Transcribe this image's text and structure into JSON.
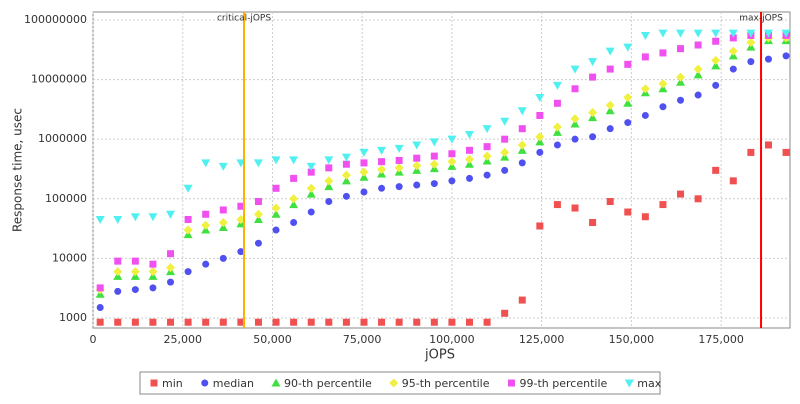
{
  "chart_data": {
    "type": "scatter",
    "xlabel": "jOPS",
    "ylabel": "Response time, usec",
    "xlim": [
      0,
      194200
    ],
    "ylim": [
      680,
      136000000
    ],
    "log_y": true,
    "grid": true,
    "xticks": [
      0,
      {
        "value": 25000,
        "label": "25,000"
      },
      {
        "value": 50000,
        "label": "50,000"
      },
      {
        "value": 75000,
        "label": "75,000"
      },
      {
        "value": 100000,
        "label": "100,000"
      },
      {
        "value": 125000,
        "label": "125,000"
      },
      {
        "value": 150000,
        "label": "150,000"
      },
      {
        "value": 175000,
        "label": "175,000"
      }
    ],
    "yticks": [
      1000,
      10000,
      100000,
      1000000,
      10000000,
      100000000
    ],
    "markers": [
      {
        "label": "critical-jOPS",
        "value": 42073,
        "color": "#ffb000"
      },
      {
        "label": "max-jOPS",
        "value": 186130,
        "color": "#ff0000"
      }
    ],
    "legend": "bottom",
    "x": [
      2000,
      6900,
      11800,
      16700,
      21600,
      26500,
      31400,
      36300,
      41200,
      46100,
      51000,
      55900,
      60800,
      65700,
      70600,
      75500,
      80400,
      85300,
      90200,
      95100,
      100000,
      104900,
      109800,
      114700,
      119600,
      124500,
      129400,
      134300,
      139200,
      144100,
      149000,
      153900,
      158800,
      163700,
      168600,
      173500,
      178400,
      183300,
      188200,
      193100
    ],
    "series": [
      {
        "name": "min",
        "color": "#f05050",
        "marker": "square",
        "values": [
          850,
          850,
          850,
          850,
          850,
          850,
          850,
          850,
          850,
          850,
          850,
          850,
          850,
          850,
          850,
          850,
          850,
          850,
          850,
          850,
          850,
          850,
          850,
          1200,
          2000,
          35000,
          80000,
          70000,
          40000,
          90000,
          60000,
          50000,
          80000,
          120000,
          100000,
          300000,
          200000,
          600000,
          800000,
          600000
        ]
      },
      {
        "name": "median",
        "color": "#5050f0",
        "marker": "circle",
        "values": [
          1500,
          2800,
          3000,
          3200,
          4000,
          6000,
          8000,
          10000,
          13000,
          18000,
          30000,
          40000,
          60000,
          90000,
          110000,
          130000,
          150000,
          160000,
          170000,
          180000,
          200000,
          220000,
          250000,
          300000,
          400000,
          600000,
          800000,
          1000000,
          1100000,
          1500000,
          1900000,
          2500000,
          3500000,
          4500000,
          5500000,
          8000000,
          15000000,
          20000000,
          22000000,
          25000000
        ]
      },
      {
        "name": "90-th percentile",
        "color": "#40e040",
        "marker": "triangle",
        "values": [
          2500,
          5000,
          5000,
          5000,
          6000,
          25000,
          30000,
          33000,
          38000,
          45000,
          55000,
          80000,
          120000,
          160000,
          200000,
          230000,
          260000,
          280000,
          300000,
          320000,
          350000,
          380000,
          430000,
          500000,
          650000,
          900000,
          1300000,
          1800000,
          2300000,
          3000000,
          4000000,
          6000000,
          7000000,
          9000000,
          12000000,
          17000000,
          25000000,
          35000000,
          45000000,
          45000000
        ]
      },
      {
        "name": "95-th percentile",
        "color": "#f0f040",
        "marker": "diamond",
        "values": [
          3000,
          6000,
          6000,
          6000,
          7000,
          30000,
          36000,
          40000,
          45000,
          55000,
          70000,
          100000,
          150000,
          200000,
          250000,
          280000,
          310000,
          330000,
          360000,
          380000,
          420000,
          460000,
          520000,
          600000,
          800000,
          1100000,
          1600000,
          2200000,
          2800000,
          3700000,
          5000000,
          7000000,
          8500000,
          11000000,
          15000000,
          21000000,
          30000000,
          42000000,
          50000000,
          50000000
        ]
      },
      {
        "name": "99-th percentile",
        "color": "#f050f0",
        "marker": "square",
        "values": [
          3200,
          9000,
          9000,
          8000,
          12000,
          45000,
          55000,
          65000,
          75000,
          90000,
          150000,
          220000,
          280000,
          330000,
          380000,
          400000,
          420000,
          440000,
          480000,
          520000,
          570000,
          650000,
          750000,
          1000000,
          1500000,
          2500000,
          4000000,
          7000000,
          11000000,
          15000000,
          18000000,
          24000000,
          28000000,
          33000000,
          38000000,
          44000000,
          50000000,
          55000000,
          55000000,
          55000000
        ]
      },
      {
        "name": "max",
        "color": "#50f0f0",
        "marker": "triangle-down",
        "values": [
          45000,
          45000,
          50000,
          50000,
          55000,
          150000,
          400000,
          350000,
          400000,
          400000,
          450000,
          450000,
          350000,
          450000,
          500000,
          600000,
          650000,
          700000,
          800000,
          900000,
          1000000,
          1200000,
          1500000,
          2000000,
          3000000,
          5000000,
          8000000,
          15000000,
          20000000,
          30000000,
          35000000,
          55000000,
          60000000,
          60000000,
          60000000,
          60000000,
          60000000,
          60000000,
          60000000,
          60000000
        ]
      }
    ]
  }
}
